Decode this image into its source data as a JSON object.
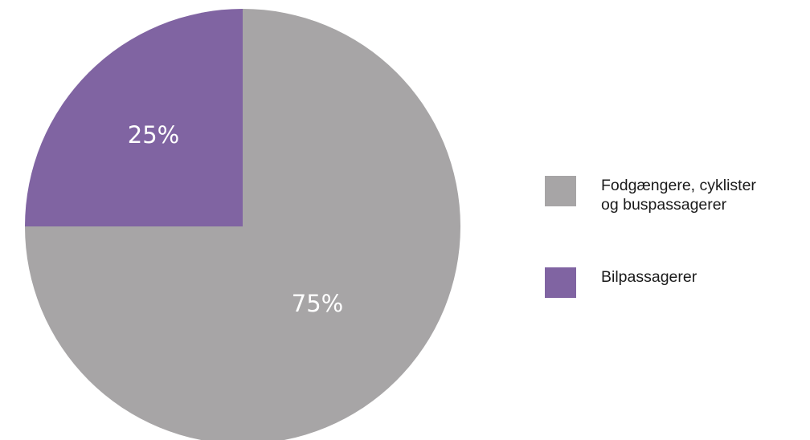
{
  "chart_data": {
    "type": "pie",
    "title": "",
    "slices": [
      {
        "name": "Fodgængere, cyklister\nog buspassagerer",
        "value": 75,
        "label": "75%",
        "color": "#a7a5a6"
      },
      {
        "name": "Bilpassagerer",
        "value": 25,
        "label": "25%",
        "color": "#8064a2"
      }
    ],
    "start_direction": "top",
    "order": "clockwise",
    "legend_position": "right"
  }
}
